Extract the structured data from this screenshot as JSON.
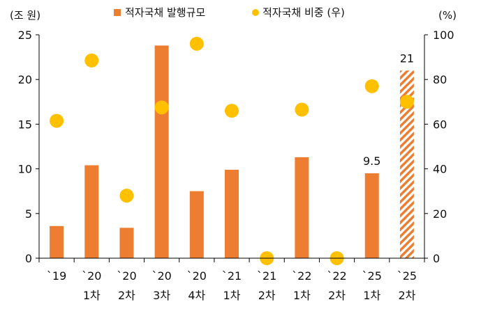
{
  "chart_data": {
    "type": "bar",
    "categories": [
      [
        "`19"
      ],
      [
        "`20",
        "1차"
      ],
      [
        "`20",
        "2차"
      ],
      [
        "`20",
        "3차"
      ],
      [
        "`20",
        "4차"
      ],
      [
        "`21",
        "1차"
      ],
      [
        "`21",
        "2차"
      ],
      [
        "`22",
        "1차"
      ],
      [
        "`22",
        "2차"
      ],
      [
        "`25",
        "1차"
      ],
      [
        "`25",
        "2차"
      ]
    ],
    "series": [
      {
        "name": "적자국채 발행규모",
        "type": "bar",
        "axis": "left",
        "color": "#ED7D31",
        "values": [
          3.6,
          10.4,
          3.4,
          23.8,
          7.5,
          9.9,
          0,
          11.3,
          0,
          9.5,
          21
        ],
        "hatched_index": 10
      },
      {
        "name": "적자국채 비중 (우)",
        "type": "scatter",
        "axis": "right",
        "color": "#FFC000",
        "values": [
          61.5,
          88.5,
          28,
          67.5,
          96,
          66,
          0,
          66.5,
          0,
          77,
          70
        ]
      }
    ],
    "data_labels": [
      {
        "index": 9,
        "text": "9.5"
      },
      {
        "index": 10,
        "text": "21"
      }
    ],
    "ylabel": "(조 원)",
    "y2label": "(%)",
    "ylim": [
      0,
      25
    ],
    "yticks": [
      "0",
      "5",
      "10",
      "15",
      "20",
      "25"
    ],
    "y2lim": [
      0,
      100
    ],
    "y2ticks": [
      "0",
      "20",
      "40",
      "60",
      "80",
      "100"
    ],
    "legend_position": "top-center",
    "grid": false
  }
}
